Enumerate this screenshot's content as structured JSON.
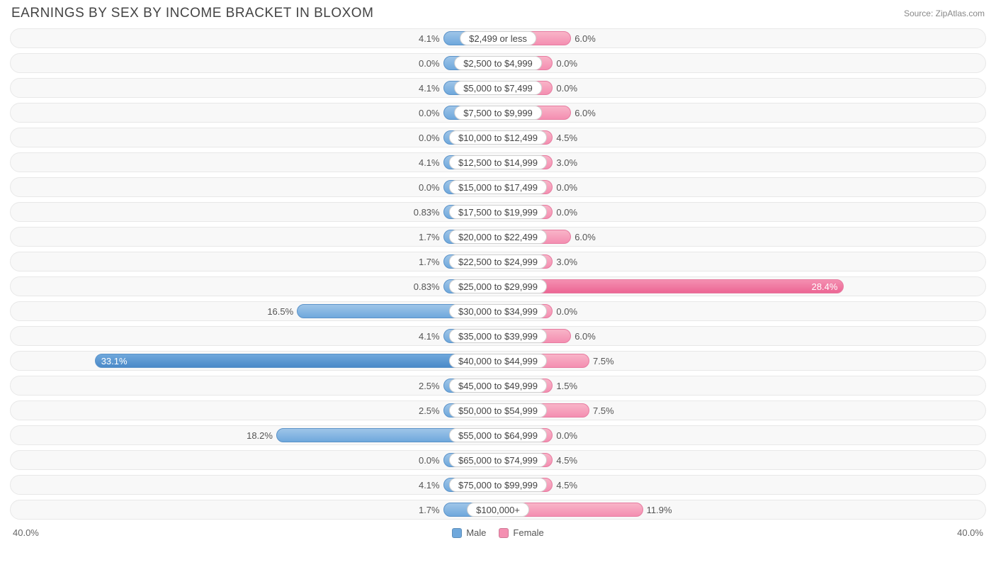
{
  "header": {
    "title": "EARNINGS BY SEX BY INCOME BRACKET IN BLOXOM",
    "source": "Source: ZipAtlas.com"
  },
  "chart": {
    "type": "diverging-bar",
    "axis_max": 40.0,
    "axis_max_label_left": "40.0%",
    "axis_max_label_right": "40.0%",
    "male_color": "#6fa8dc",
    "male_strong_color": "#4a89c8",
    "female_color": "#f48fb1",
    "female_strong_color": "#ec6694",
    "track_bg": "#f8f8f8",
    "track_border": "#e8e8e8",
    "min_bar_pct": 4.5,
    "strong_threshold": 20.0,
    "inside_label_threshold": 20.0,
    "rows": [
      {
        "label": "$2,499 or less",
        "male": 4.1,
        "female": 6.0,
        "male_txt": "4.1%",
        "female_txt": "6.0%"
      },
      {
        "label": "$2,500 to $4,999",
        "male": 0.0,
        "female": 0.0,
        "male_txt": "0.0%",
        "female_txt": "0.0%"
      },
      {
        "label": "$5,000 to $7,499",
        "male": 4.1,
        "female": 0.0,
        "male_txt": "4.1%",
        "female_txt": "0.0%"
      },
      {
        "label": "$7,500 to $9,999",
        "male": 0.0,
        "female": 6.0,
        "male_txt": "0.0%",
        "female_txt": "6.0%"
      },
      {
        "label": "$10,000 to $12,499",
        "male": 0.0,
        "female": 4.5,
        "male_txt": "0.0%",
        "female_txt": "4.5%"
      },
      {
        "label": "$12,500 to $14,999",
        "male": 4.1,
        "female": 3.0,
        "male_txt": "4.1%",
        "female_txt": "3.0%"
      },
      {
        "label": "$15,000 to $17,499",
        "male": 0.0,
        "female": 0.0,
        "male_txt": "0.0%",
        "female_txt": "0.0%"
      },
      {
        "label": "$17,500 to $19,999",
        "male": 0.83,
        "female": 0.0,
        "male_txt": "0.83%",
        "female_txt": "0.0%"
      },
      {
        "label": "$20,000 to $22,499",
        "male": 1.7,
        "female": 6.0,
        "male_txt": "1.7%",
        "female_txt": "6.0%"
      },
      {
        "label": "$22,500 to $24,999",
        "male": 1.7,
        "female": 3.0,
        "male_txt": "1.7%",
        "female_txt": "3.0%"
      },
      {
        "label": "$25,000 to $29,999",
        "male": 0.83,
        "female": 28.4,
        "male_txt": "0.83%",
        "female_txt": "28.4%"
      },
      {
        "label": "$30,000 to $34,999",
        "male": 16.5,
        "female": 0.0,
        "male_txt": "16.5%",
        "female_txt": "0.0%"
      },
      {
        "label": "$35,000 to $39,999",
        "male": 4.1,
        "female": 6.0,
        "male_txt": "4.1%",
        "female_txt": "6.0%"
      },
      {
        "label": "$40,000 to $44,999",
        "male": 33.1,
        "female": 7.5,
        "male_txt": "33.1%",
        "female_txt": "7.5%"
      },
      {
        "label": "$45,000 to $49,999",
        "male": 2.5,
        "female": 1.5,
        "male_txt": "2.5%",
        "female_txt": "1.5%"
      },
      {
        "label": "$50,000 to $54,999",
        "male": 2.5,
        "female": 7.5,
        "male_txt": "2.5%",
        "female_txt": "7.5%"
      },
      {
        "label": "$55,000 to $64,999",
        "male": 18.2,
        "female": 0.0,
        "male_txt": "18.2%",
        "female_txt": "0.0%"
      },
      {
        "label": "$65,000 to $74,999",
        "male": 0.0,
        "female": 4.5,
        "male_txt": "0.0%",
        "female_txt": "4.5%"
      },
      {
        "label": "$75,000 to $99,999",
        "male": 4.1,
        "female": 4.5,
        "male_txt": "4.1%",
        "female_txt": "4.5%"
      },
      {
        "label": "$100,000+",
        "male": 1.7,
        "female": 11.9,
        "male_txt": "1.7%",
        "female_txt": "11.9%"
      }
    ]
  },
  "legend": {
    "male": "Male",
    "female": "Female"
  }
}
